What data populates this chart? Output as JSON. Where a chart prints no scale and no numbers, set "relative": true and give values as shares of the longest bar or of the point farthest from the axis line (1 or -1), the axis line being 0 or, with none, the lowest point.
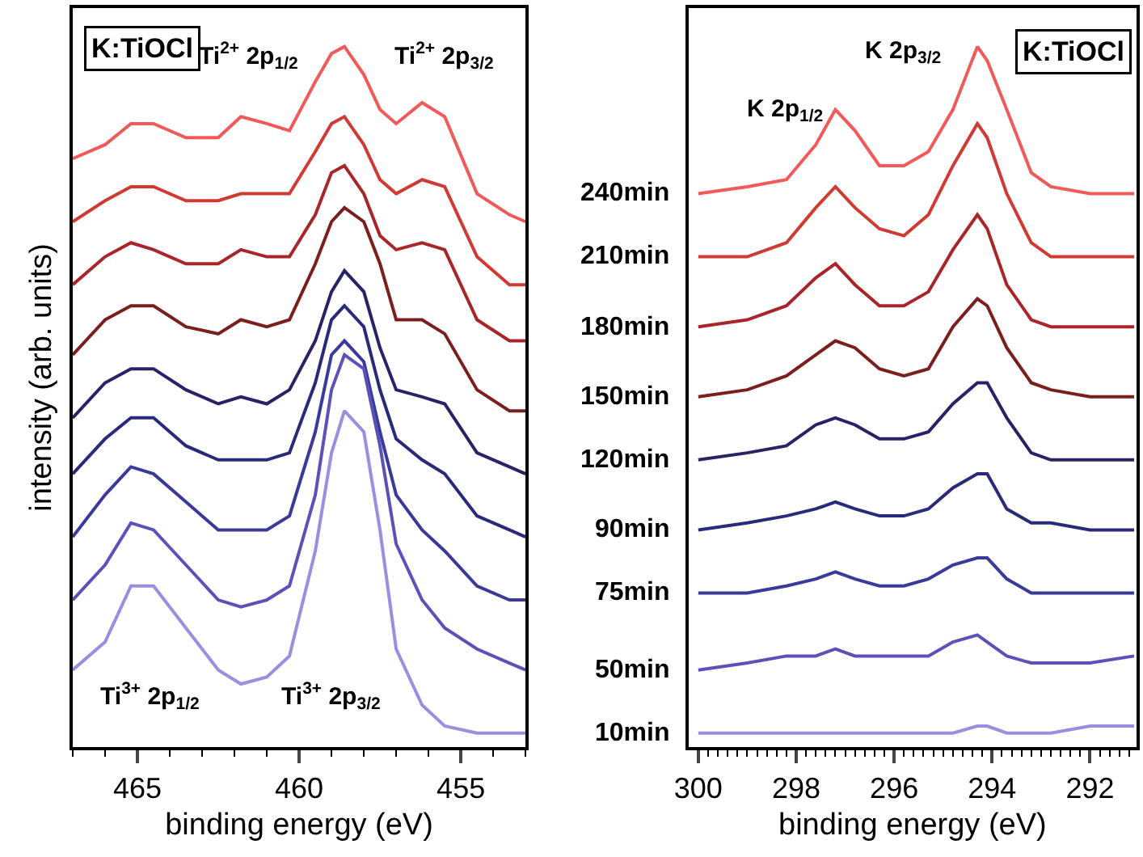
{
  "chart_data": [
    {
      "type": "line",
      "relative": true,
      "tick_labels": "x",
      "xlabel": "binding energy (eV)",
      "ylabel": "intensity (arb. units)",
      "x": [
        467,
        466,
        465.2,
        464.5,
        463.5,
        462.5,
        461.8,
        461,
        460.3,
        459.5,
        459,
        458.6,
        458,
        457.5,
        457,
        456.2,
        455.5,
        454.5,
        453.5,
        453
      ],
      "xlim": [
        467,
        453
      ],
      "xticks": [
        465,
        460,
        455,
        {
          "value": 467,
          "label": null
        },
        {
          "value": 466,
          "label": null
        },
        {
          "value": 464,
          "label": null
        },
        {
          "value": 463,
          "label": null
        },
        {
          "value": 462,
          "label": null
        },
        {
          "value": 461,
          "label": null
        },
        {
          "value": 459,
          "label": null
        },
        {
          "value": 458,
          "label": null
        },
        {
          "value": 457,
          "label": null
        },
        {
          "value": 456,
          "label": null
        },
        {
          "value": 454,
          "label": null
        },
        {
          "value": 453,
          "label": null
        }
      ],
      "series": [
        {
          "color": "#f25a5a",
          "values": [
            0.84,
            0.86,
            0.89,
            0.89,
            0.87,
            0.87,
            0.9,
            0.89,
            0.88,
            0.95,
            0.99,
            1.0,
            0.96,
            0.91,
            0.89,
            0.92,
            0.9,
            0.79,
            0.76,
            0.75
          ]
        },
        {
          "color": "#d03a32",
          "values": [
            0.75,
            0.78,
            0.8,
            0.8,
            0.78,
            0.78,
            0.79,
            0.79,
            0.79,
            0.85,
            0.89,
            0.9,
            0.86,
            0.81,
            0.79,
            0.81,
            0.8,
            0.7,
            0.66,
            0.66
          ]
        },
        {
          "color": "#a8262a",
          "values": [
            0.66,
            0.7,
            0.72,
            0.71,
            0.69,
            0.69,
            0.71,
            0.7,
            0.7,
            0.76,
            0.82,
            0.83,
            0.79,
            0.73,
            0.71,
            0.72,
            0.71,
            0.61,
            0.58,
            0.58
          ]
        },
        {
          "color": "#7a1e1e",
          "values": [
            0.56,
            0.61,
            0.63,
            0.63,
            0.6,
            0.59,
            0.61,
            0.6,
            0.61,
            0.69,
            0.75,
            0.77,
            0.75,
            0.69,
            0.61,
            0.61,
            0.59,
            0.51,
            0.48,
            0.48
          ]
        },
        {
          "color": "#262466",
          "values": [
            0.47,
            0.52,
            0.54,
            0.54,
            0.51,
            0.49,
            0.5,
            0.49,
            0.51,
            0.58,
            0.65,
            0.68,
            0.65,
            0.57,
            0.51,
            0.5,
            0.49,
            0.42,
            0.4,
            0.39
          ]
        },
        {
          "color": "#2a2a7a",
          "values": [
            0.39,
            0.44,
            0.47,
            0.47,
            0.43,
            0.41,
            0.41,
            0.41,
            0.42,
            0.52,
            0.61,
            0.63,
            0.6,
            0.51,
            0.44,
            0.41,
            0.39,
            0.33,
            0.31,
            0.3
          ]
        },
        {
          "color": "#3a3a9a",
          "values": [
            0.3,
            0.36,
            0.4,
            0.39,
            0.35,
            0.31,
            0.31,
            0.31,
            0.33,
            0.45,
            0.56,
            0.58,
            0.55,
            0.45,
            0.36,
            0.31,
            0.28,
            0.23,
            0.21,
            0.21
          ]
        },
        {
          "color": "#5a52b8",
          "values": [
            0.21,
            0.26,
            0.32,
            0.31,
            0.26,
            0.21,
            0.2,
            0.21,
            0.23,
            0.36,
            0.51,
            0.56,
            0.54,
            0.43,
            0.29,
            0.21,
            0.17,
            0.14,
            0.12,
            0.11
          ]
        },
        {
          "color": "#9a8ee0",
          "values": [
            0.11,
            0.15,
            0.23,
            0.23,
            0.17,
            0.11,
            0.09,
            0.1,
            0.13,
            0.28,
            0.42,
            0.48,
            0.45,
            0.31,
            0.14,
            0.06,
            0.03,
            0.02,
            0.02,
            0.02
          ]
        }
      ],
      "annotations": [
        "K:TiOCl",
        "Ti$^{2+}$ 2p$_{1/2}$",
        "Ti$^{2+}$ 2p$_{3/2}$",
        "Ti$^{3+}$ 2p$_{1/2}$",
        "Ti$^{3+}$ 2p$_{3/2}$"
      ]
    },
    {
      "type": "line",
      "relative": true,
      "tick_labels": "x",
      "xlabel": "binding energy (eV)",
      "x": [
        300,
        299,
        298.2,
        297.6,
        297.2,
        296.8,
        296.3,
        295.8,
        295.3,
        294.8,
        294.3,
        294.1,
        293.7,
        293.2,
        292.8,
        292,
        291.1
      ],
      "xlim": [
        300.2,
        291.05
      ],
      "xticks": [
        300,
        298,
        296,
        294,
        292,
        {
          "value": 299.8,
          "label": null
        },
        {
          "value": 299.6,
          "label": null
        },
        {
          "value": 299.4,
          "label": null
        },
        {
          "value": 299.2,
          "label": null
        },
        {
          "value": 299,
          "label": null
        },
        {
          "value": 298.8,
          "label": null
        },
        {
          "value": 298.6,
          "label": null
        },
        {
          "value": 298.4,
          "label": null
        },
        {
          "value": 298.2,
          "label": null
        },
        {
          "value": 297.8,
          "label": null
        },
        {
          "value": 297.6,
          "label": null
        },
        {
          "value": 297.4,
          "label": null
        },
        {
          "value": 297.2,
          "label": null
        },
        {
          "value": 297,
          "label": null
        },
        {
          "value": 296.8,
          "label": null
        },
        {
          "value": 296.6,
          "label": null
        },
        {
          "value": 296.4,
          "label": null
        },
        {
          "value": 296.2,
          "label": null
        },
        {
          "value": 295.8,
          "label": null
        },
        {
          "value": 295.6,
          "label": null
        },
        {
          "value": 295.4,
          "label": null
        },
        {
          "value": 295.2,
          "label": null
        },
        {
          "value": 295,
          "label": null
        },
        {
          "value": 294.8,
          "label": null
        },
        {
          "value": 294.6,
          "label": null
        },
        {
          "value": 294.4,
          "label": null
        },
        {
          "value": 294.2,
          "label": null
        },
        {
          "value": 293.8,
          "label": null
        },
        {
          "value": 293.6,
          "label": null
        },
        {
          "value": 293.4,
          "label": null
        },
        {
          "value": 293.2,
          "label": null
        },
        {
          "value": 293,
          "label": null
        },
        {
          "value": 292.8,
          "label": null
        },
        {
          "value": 292.6,
          "label": null
        },
        {
          "value": 292.4,
          "label": null
        },
        {
          "value": 292.2,
          "label": null
        },
        {
          "value": 291.8,
          "label": null
        },
        {
          "value": 291.6,
          "label": null
        },
        {
          "value": 291.4,
          "label": null
        },
        {
          "value": 291.2,
          "label": null
        }
      ],
      "series": [
        {
          "name": "240min",
          "color": "#f25a5a",
          "values": [
            0.79,
            0.8,
            0.81,
            0.86,
            0.91,
            0.88,
            0.83,
            0.83,
            0.85,
            0.91,
            1.0,
            0.98,
            0.91,
            0.82,
            0.8,
            0.79,
            0.79
          ]
        },
        {
          "name": "210min",
          "color": "#d03a32",
          "values": [
            0.7,
            0.7,
            0.72,
            0.77,
            0.8,
            0.77,
            0.74,
            0.73,
            0.76,
            0.83,
            0.89,
            0.87,
            0.79,
            0.72,
            0.7,
            0.7,
            0.7
          ]
        },
        {
          "name": "180min",
          "color": "#a8262a",
          "values": [
            0.6,
            0.61,
            0.63,
            0.67,
            0.69,
            0.66,
            0.63,
            0.63,
            0.65,
            0.71,
            0.76,
            0.74,
            0.66,
            0.61,
            0.6,
            0.6,
            0.6
          ]
        },
        {
          "name": "150min",
          "color": "#7a1e1e",
          "values": [
            0.5,
            0.51,
            0.53,
            0.56,
            0.58,
            0.57,
            0.54,
            0.53,
            0.54,
            0.6,
            0.64,
            0.63,
            0.57,
            0.52,
            0.51,
            0.5,
            0.5
          ]
        },
        {
          "name": "120min",
          "color": "#262466",
          "values": [
            0.41,
            0.42,
            0.43,
            0.46,
            0.47,
            0.46,
            0.44,
            0.44,
            0.45,
            0.49,
            0.52,
            0.52,
            0.47,
            0.42,
            0.41,
            0.41,
            0.41
          ]
        },
        {
          "name": "90min",
          "color": "#2a2a7a",
          "values": [
            0.31,
            0.32,
            0.33,
            0.34,
            0.35,
            0.34,
            0.33,
            0.33,
            0.34,
            0.37,
            0.39,
            0.39,
            0.34,
            0.32,
            0.32,
            0.31,
            0.31
          ]
        },
        {
          "name": "75min",
          "color": "#3a3a9a",
          "values": [
            0.22,
            0.22,
            0.23,
            0.24,
            0.25,
            0.24,
            0.23,
            0.23,
            0.24,
            0.26,
            0.27,
            0.27,
            0.24,
            0.22,
            0.22,
            0.22,
            0.22
          ]
        },
        {
          "name": "50min",
          "color": "#5a52b8",
          "values": [
            0.11,
            0.12,
            0.13,
            0.13,
            0.14,
            0.13,
            0.13,
            0.13,
            0.13,
            0.15,
            0.16,
            0.15,
            0.13,
            0.12,
            0.12,
            0.12,
            0.13
          ]
        },
        {
          "name": "10min",
          "color": "#9a8ee0",
          "values": [
            0.02,
            0.02,
            0.02,
            0.02,
            0.02,
            0.02,
            0.02,
            0.02,
            0.02,
            0.02,
            0.03,
            0.03,
            0.02,
            0.02,
            0.02,
            0.03,
            0.03
          ]
        }
      ],
      "annotations": [
        "K 2p$_{1/2}$",
        "K 2p$_{3/2}$",
        "K:TiOCl"
      ]
    }
  ]
}
